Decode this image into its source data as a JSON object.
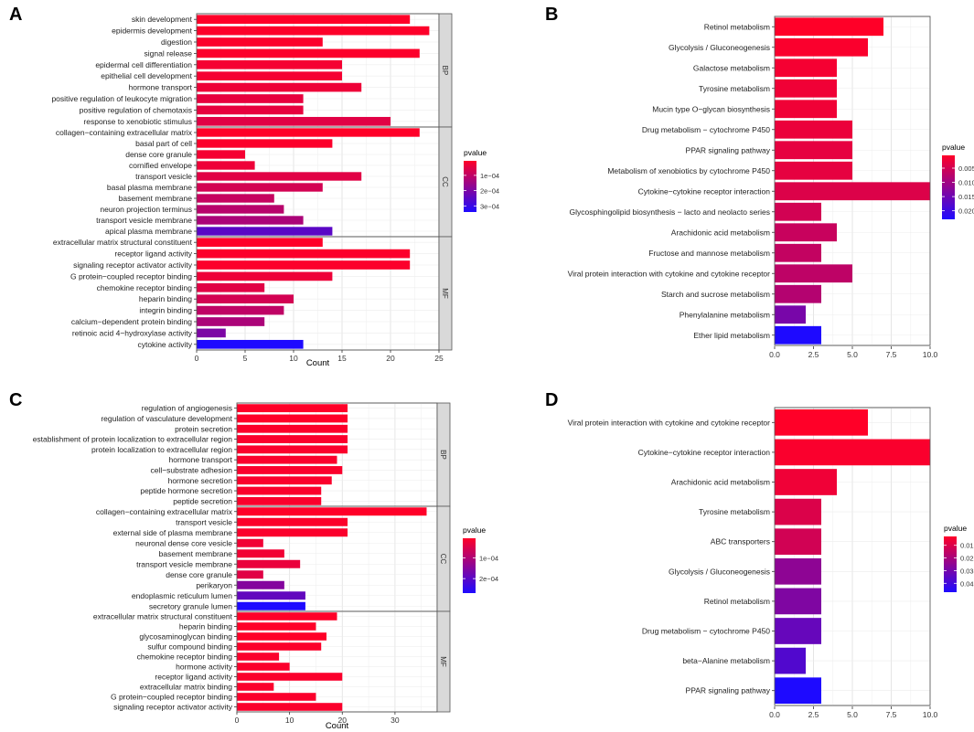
{
  "chart_data": [
    {
      "panel": "A",
      "type": "bar",
      "orientation": "horizontal",
      "xlabel": "Count",
      "xlim": [
        0,
        25
      ],
      "xticks": [
        0,
        5,
        10,
        15,
        20,
        25
      ],
      "legend": {
        "title": "pvalue",
        "ticks": [
          0.0001,
          0.0002,
          0.0003
        ],
        "tick_labels": [
          "1e−04",
          "2e−04",
          "3e−04"
        ],
        "range": [
          5e-06,
          0.00034
        ]
      },
      "facets": [
        {
          "name": "BP",
          "items": [
            {
              "label": "skin development",
              "count": 22,
              "pvalue": 5e-06
            },
            {
              "label": "epidermis development",
              "count": 24,
              "pvalue": 8e-06
            },
            {
              "label": "digestion",
              "count": 13,
              "pvalue": 1e-05
            },
            {
              "label": "signal release",
              "count": 23,
              "pvalue": 1e-05
            },
            {
              "label": "epidermal cell differentiation",
              "count": 15,
              "pvalue": 2e-05
            },
            {
              "label": "epithelial cell development",
              "count": 15,
              "pvalue": 2e-05
            },
            {
              "label": "hormone transport",
              "count": 17,
              "pvalue": 3e-05
            },
            {
              "label": "positive regulation of leukocyte migration",
              "count": 11,
              "pvalue": 4e-05
            },
            {
              "label": "positive regulation of chemotaxis",
              "count": 11,
              "pvalue": 4e-05
            },
            {
              "label": "response to xenobiotic stimulus",
              "count": 20,
              "pvalue": 5e-05
            }
          ]
        },
        {
          "name": "CC",
          "items": [
            {
              "label": "collagen−containing extracellular matrix",
              "count": 23,
              "pvalue": 5e-06
            },
            {
              "label": "basal part of cell",
              "count": 14,
              "pvalue": 1e-05
            },
            {
              "label": "dense core granule",
              "count": 5,
              "pvalue": 2e-05
            },
            {
              "label": "cornified envelope",
              "count": 6,
              "pvalue": 3e-05
            },
            {
              "label": "transport vesicle",
              "count": 17,
              "pvalue": 5e-05
            },
            {
              "label": "basal plasma membrane",
              "count": 13,
              "pvalue": 7e-05
            },
            {
              "label": "basement membrane",
              "count": 8,
              "pvalue": 9e-05
            },
            {
              "label": "neuron projection terminus",
              "count": 9,
              "pvalue": 0.00011
            },
            {
              "label": "transport vesicle membrane",
              "count": 11,
              "pvalue": 0.00013
            },
            {
              "label": "apical plasma membrane",
              "count": 14,
              "pvalue": 0.00025
            }
          ]
        },
        {
          "name": "MF",
          "items": [
            {
              "label": "extracellular matrix structural constituent",
              "count": 13,
              "pvalue": 5e-06
            },
            {
              "label": "receptor ligand activity",
              "count": 22,
              "pvalue": 1e-05
            },
            {
              "label": "signaling receptor activator activity",
              "count": 22,
              "pvalue": 1e-05
            },
            {
              "label": "G protein−coupled receptor binding",
              "count": 14,
              "pvalue": 3e-05
            },
            {
              "label": "chemokine receptor binding",
              "count": 7,
              "pvalue": 5e-05
            },
            {
              "label": "heparin binding",
              "count": 10,
              "pvalue": 7e-05
            },
            {
              "label": "integrin binding",
              "count": 9,
              "pvalue": 0.0001
            },
            {
              "label": "calcium−dependent protein binding",
              "count": 7,
              "pvalue": 0.00013
            },
            {
              "label": "retinoic acid 4−hydroxylase activity",
              "count": 3,
              "pvalue": 0.0002
            },
            {
              "label": "cytokine activity",
              "count": 11,
              "pvalue": 0.00034
            }
          ]
        }
      ]
    },
    {
      "panel": "B",
      "type": "bar",
      "orientation": "horizontal",
      "xlabel": "",
      "xlim": [
        0,
        10
      ],
      "xticks": [
        0,
        2.5,
        5,
        7.5,
        10
      ],
      "xtick_labels": [
        "0.0",
        "2.5",
        "5.0",
        "7.5",
        "10.0"
      ],
      "legend": {
        "title": "pvalue",
        "ticks": [
          0.005,
          0.01,
          0.015,
          0.02
        ],
        "tick_labels": [
          "0.005",
          "0.010",
          "0.015",
          "0.020"
        ],
        "range": [
          0.0005,
          0.023
        ]
      },
      "facets": [
        {
          "name": "",
          "items": [
            {
              "label": "Retinol metabolism",
              "count": 7,
              "pvalue": 0.0005
            },
            {
              "label": "Glycolysis / Gluconeogenesis",
              "count": 6,
              "pvalue": 0.001
            },
            {
              "label": "Galactose metabolism",
              "count": 4,
              "pvalue": 0.0015
            },
            {
              "label": "Tyrosine metabolism",
              "count": 4,
              "pvalue": 0.002
            },
            {
              "label": "Mucin type O−glycan biosynthesis",
              "count": 4,
              "pvalue": 0.002
            },
            {
              "label": "Drug metabolism − cytochrome P450",
              "count": 5,
              "pvalue": 0.0025
            },
            {
              "label": "PPAR signaling pathway",
              "count": 5,
              "pvalue": 0.003
            },
            {
              "label": "Metabolism of xenobiotics by cytochrome P450",
              "count": 5,
              "pvalue": 0.003
            },
            {
              "label": "Cytokine−cytokine receptor interaction",
              "count": 10,
              "pvalue": 0.004
            },
            {
              "label": "Glycosphingolipid biosynthesis − lacto and neolacto series",
              "count": 3,
              "pvalue": 0.005
            },
            {
              "label": "Arachidonic acid metabolism",
              "count": 4,
              "pvalue": 0.006
            },
            {
              "label": "Fructose and mannose metabolism",
              "count": 3,
              "pvalue": 0.0065
            },
            {
              "label": "Viral protein interaction with cytokine and cytokine receptor",
              "count": 5,
              "pvalue": 0.007
            },
            {
              "label": "Starch and sucrose metabolism",
              "count": 3,
              "pvalue": 0.008
            },
            {
              "label": "Phenylalanine metabolism",
              "count": 2,
              "pvalue": 0.014
            },
            {
              "label": "Ether lipid metabolism",
              "count": 3,
              "pvalue": 0.023
            }
          ]
        }
      ]
    },
    {
      "panel": "C",
      "type": "bar",
      "orientation": "horizontal",
      "xlabel": "Count",
      "xlim": [
        0,
        38
      ],
      "xticks": [
        0,
        10,
        20,
        30
      ],
      "legend": {
        "title": "pvalue",
        "ticks": [
          0.0001,
          0.0002
        ],
        "tick_labels": [
          "1e−04",
          "2e−04"
        ],
        "range": [
          5e-06,
          0.00027
        ]
      },
      "facets": [
        {
          "name": "BP",
          "items": [
            {
              "label": "regulation of angiogenesis",
              "count": 21,
              "pvalue": 5e-06
            },
            {
              "label": "regulation of vasculature development",
              "count": 21,
              "pvalue": 5e-06
            },
            {
              "label": "protein secretion",
              "count": 21,
              "pvalue": 8e-06
            },
            {
              "label": "establishment of protein localization to extracellular region",
              "count": 21,
              "pvalue": 1e-05
            },
            {
              "label": "protein localization to extracellular region",
              "count": 21,
              "pvalue": 1e-05
            },
            {
              "label": "hormone transport",
              "count": 19,
              "pvalue": 1e-05
            },
            {
              "label": "cell−substrate adhesion",
              "count": 20,
              "pvalue": 1e-05
            },
            {
              "label": "hormone secretion",
              "count": 18,
              "pvalue": 1e-05
            },
            {
              "label": "peptide hormone secretion",
              "count": 16,
              "pvalue": 1e-05
            },
            {
              "label": "peptide secretion",
              "count": 16,
              "pvalue": 1e-05
            }
          ]
        },
        {
          "name": "CC",
          "items": [
            {
              "label": "collagen−containing extracellular matrix",
              "count": 36,
              "pvalue": 5e-06
            },
            {
              "label": "transport vesicle",
              "count": 21,
              "pvalue": 8e-06
            },
            {
              "label": "external side of plasma membrane",
              "count": 21,
              "pvalue": 1e-05
            },
            {
              "label": "neuronal dense core vesicle",
              "count": 5,
              "pvalue": 2e-05
            },
            {
              "label": "basement membrane",
              "count": 9,
              "pvalue": 2e-05
            },
            {
              "label": "transport vesicle membrane",
              "count": 12,
              "pvalue": 3e-05
            },
            {
              "label": "dense core granule",
              "count": 5,
              "pvalue": 4e-05
            },
            {
              "label": "perikaryon",
              "count": 9,
              "pvalue": 0.00015
            },
            {
              "label": "endoplasmic reticulum lumen",
              "count": 13,
              "pvalue": 0.00019
            },
            {
              "label": "secretory granule lumen",
              "count": 13,
              "pvalue": 0.00027
            }
          ]
        },
        {
          "name": "MF",
          "items": [
            {
              "label": "extracellular matrix structural constituent",
              "count": 19,
              "pvalue": 5e-06
            },
            {
              "label": "heparin binding",
              "count": 15,
              "pvalue": 5e-06
            },
            {
              "label": "glycosaminoglycan binding",
              "count": 17,
              "pvalue": 5e-06
            },
            {
              "label": "sulfur compound binding",
              "count": 16,
              "pvalue": 8e-06
            },
            {
              "label": "chemokine receptor binding",
              "count": 8,
              "pvalue": 1e-05
            },
            {
              "label": "hormone activity",
              "count": 10,
              "pvalue": 1e-05
            },
            {
              "label": "receptor ligand activity",
              "count": 20,
              "pvalue": 1e-05
            },
            {
              "label": "extracellular matrix binding",
              "count": 7,
              "pvalue": 1e-05
            },
            {
              "label": "G protein−coupled receptor binding",
              "count": 15,
              "pvalue": 1e-05
            },
            {
              "label": "signaling receptor activator activity",
              "count": 20,
              "pvalue": 1e-05
            }
          ]
        }
      ]
    },
    {
      "panel": "D",
      "type": "bar",
      "orientation": "horizontal",
      "xlabel": "",
      "xlim": [
        0,
        10
      ],
      "xticks": [
        0,
        2.5,
        5,
        7.5,
        10
      ],
      "xtick_labels": [
        "0.0",
        "2.5",
        "5.0",
        "7.5",
        "10.0"
      ],
      "legend": {
        "title": "pvalue",
        "ticks": [
          0.01,
          0.02,
          0.03,
          0.04
        ],
        "tick_labels": [
          "0.01",
          "0.02",
          "0.03",
          "0.04"
        ],
        "range": [
          0.003,
          0.047
        ]
      },
      "facets": [
        {
          "name": "",
          "items": [
            {
              "label": "Viral protein interaction with cytokine and cytokine receptor",
              "count": 6,
              "pvalue": 0.003
            },
            {
              "label": "Cytokine−cytokine receptor interaction",
              "count": 10,
              "pvalue": 0.004
            },
            {
              "label": "Arachidonic acid metabolism",
              "count": 4,
              "pvalue": 0.006
            },
            {
              "label": "Tyrosine metabolism",
              "count": 3,
              "pvalue": 0.01
            },
            {
              "label": "ABC transporters",
              "count": 3,
              "pvalue": 0.012
            },
            {
              "label": "Glycolysis / Gluconeogenesis",
              "count": 3,
              "pvalue": 0.025
            },
            {
              "label": "Retinol metabolism",
              "count": 3,
              "pvalue": 0.028
            },
            {
              "label": "Drug metabolism − cytochrome P450",
              "count": 3,
              "pvalue": 0.033
            },
            {
              "label": "beta−Alanine metabolism",
              "count": 2,
              "pvalue": 0.037
            },
            {
              "label": "PPAR signaling pathway",
              "count": 3,
              "pvalue": 0.047
            }
          ]
        }
      ]
    }
  ]
}
